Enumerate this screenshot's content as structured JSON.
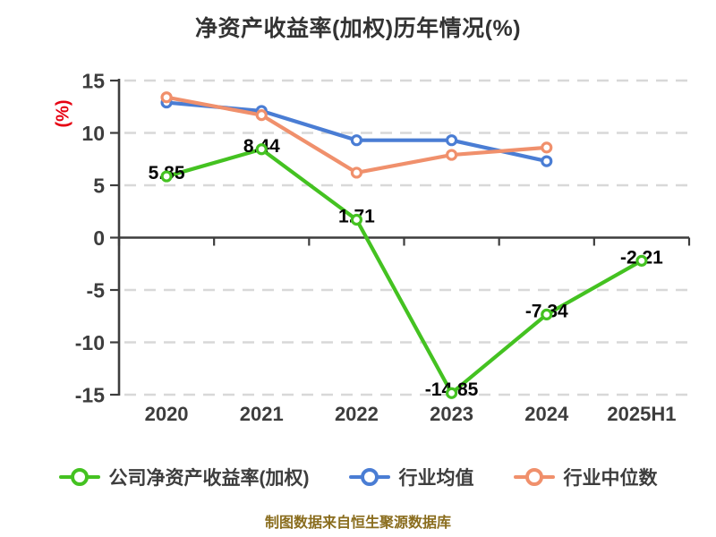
{
  "title": "净资产收益率(加权)历年情况(%)",
  "footer": {
    "source_note": "制图数据来自恒生聚源数据库"
  },
  "colors": {
    "company_line": "#44c221",
    "industry_mean_line": "#4a7dd4",
    "industry_median_line": "#f0906c",
    "y_axis_label": "#e60012",
    "footer_note": "#8a6d1e",
    "axis": "#3d3d3d",
    "gridline": "#d8d8d8",
    "tick_label": "#3d3d3d",
    "data_label": "#050505"
  },
  "chart_data": {
    "type": "line",
    "title": "净资产收益率(加权)历年情况(%)",
    "xlabel": "",
    "ylabel": "(%)",
    "categories": [
      "2020",
      "2021",
      "2022",
      "2023",
      "2024",
      "2025H1"
    ],
    "ylim": [
      -15,
      15
    ],
    "yticks": [
      15,
      10,
      5,
      0,
      -5,
      -10,
      -15
    ],
    "grid": "horizontal-dashed",
    "legend_position": "bottom",
    "series": [
      {
        "name": "公司净资产收益率(加权)",
        "color": "#44c221",
        "values": [
          5.85,
          8.44,
          1.71,
          -14.85,
          -7.34,
          -2.21
        ],
        "labels": [
          "5.85",
          "8.44",
          "1.71",
          "-14.85",
          "-7.34",
          "-2.21"
        ],
        "show_labels": true
      },
      {
        "name": "行业均值",
        "color": "#4a7dd4",
        "values": [
          12.9,
          12.1,
          9.3,
          9.3,
          7.3,
          null
        ],
        "show_labels": false
      },
      {
        "name": "行业中位数",
        "color": "#f0906c",
        "values": [
          13.4,
          11.7,
          6.2,
          7.9,
          8.6,
          null
        ],
        "show_labels": false
      }
    ]
  }
}
